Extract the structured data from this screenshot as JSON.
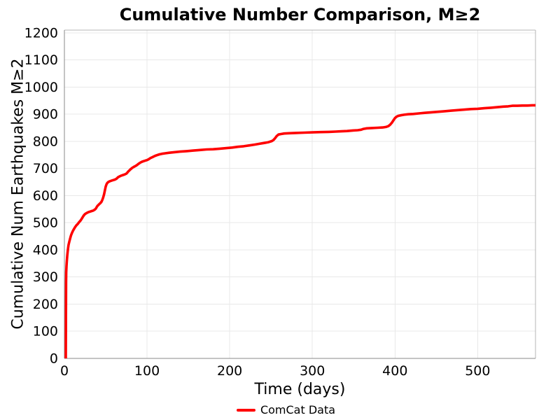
{
  "page": {
    "background": "#ffffff"
  },
  "header": {
    "title": "Cumulative Number Comparison, M≥2"
  },
  "axes": {
    "xlabel": "Time (days)",
    "ylabel": "Cumulative Num Earthquakes M≥2"
  },
  "legend": {
    "position": "bottom-center",
    "items": [
      {
        "label": "ComCat Data",
        "color": "#ff0000"
      }
    ]
  },
  "chart_data": {
    "type": "line",
    "title": "Cumulative Number Comparison, M≥2",
    "xlabel": "Time (days)",
    "ylabel": "Cumulative Num Earthquakes M≥2",
    "xlim": [
      0,
      570
    ],
    "ylim": [
      0,
      1210
    ],
    "x_ticks": [
      0,
      100,
      200,
      300,
      400,
      500
    ],
    "y_ticks": [
      0,
      100,
      200,
      300,
      400,
      500,
      600,
      700,
      800,
      900,
      1000,
      1100,
      1200
    ],
    "grid": true,
    "grid_color": "#e8e8e8",
    "spine_color_left_bottom": "#8a8a8a",
    "spine_color_top_right": "#b4b4b4",
    "tick_label_color": "#000000",
    "tick_font_px": 19,
    "legend_position": "bottom-center",
    "series": [
      {
        "name": "ComCat Data",
        "color": "#ff0000",
        "width": 3.6,
        "points": [
          [
            1.7,
            0
          ],
          [
            1.9,
            150
          ],
          [
            2,
            280
          ],
          [
            2.2,
            318
          ],
          [
            2.5,
            340
          ],
          [
            3,
            360
          ],
          [
            3.5,
            379
          ],
          [
            4,
            394
          ],
          [
            4.5,
            407
          ],
          [
            5,
            418
          ],
          [
            6,
            431
          ],
          [
            7,
            443
          ],
          [
            8,
            453
          ],
          [
            9,
            461
          ],
          [
            10,
            468
          ],
          [
            11,
            474
          ],
          [
            12,
            479
          ],
          [
            13,
            484
          ],
          [
            14,
            488
          ],
          [
            15,
            492
          ],
          [
            16,
            495
          ],
          [
            17,
            499
          ],
          [
            18,
            503
          ],
          [
            19,
            506
          ],
          [
            20,
            510
          ],
          [
            21,
            515
          ],
          [
            22,
            520
          ],
          [
            23,
            525
          ],
          [
            24,
            529
          ],
          [
            25,
            532
          ],
          [
            27,
            536
          ],
          [
            29,
            539
          ],
          [
            31,
            541
          ],
          [
            33,
            543
          ],
          [
            35,
            545
          ],
          [
            37,
            549
          ],
          [
            38,
            552
          ],
          [
            39,
            557
          ],
          [
            40,
            562
          ],
          [
            41,
            565
          ],
          [
            42,
            568
          ],
          [
            43,
            571
          ],
          [
            44,
            574
          ],
          [
            45,
            578
          ],
          [
            46,
            585
          ],
          [
            47,
            594
          ],
          [
            48,
            605
          ],
          [
            49,
            620
          ],
          [
            50,
            633
          ],
          [
            51,
            642
          ],
          [
            52,
            647
          ],
          [
            53,
            650
          ],
          [
            55,
            653
          ],
          [
            57,
            655
          ],
          [
            59,
            657
          ],
          [
            61,
            659
          ],
          [
            63,
            662
          ],
          [
            64,
            665
          ],
          [
            65,
            668
          ],
          [
            67,
            671
          ],
          [
            69,
            674
          ],
          [
            71,
            676
          ],
          [
            73,
            678
          ],
          [
            75,
            681
          ],
          [
            76,
            684
          ],
          [
            77,
            688
          ],
          [
            78,
            691
          ],
          [
            79,
            694
          ],
          [
            80,
            697
          ],
          [
            82,
            702
          ],
          [
            84,
            706
          ],
          [
            86,
            709
          ],
          [
            88,
            713
          ],
          [
            90,
            718
          ],
          [
            92,
            722
          ],
          [
            94,
            725
          ],
          [
            96,
            727
          ],
          [
            98,
            729
          ],
          [
            100,
            731
          ],
          [
            102,
            734
          ],
          [
            104,
            738
          ],
          [
            106,
            741
          ],
          [
            108,
            744
          ],
          [
            110,
            747
          ],
          [
            112,
            749
          ],
          [
            115,
            752
          ],
          [
            118,
            754
          ],
          [
            122,
            756
          ],
          [
            127,
            758
          ],
          [
            133,
            760
          ],
          [
            140,
            762
          ],
          [
            148,
            764
          ],
          [
            156,
            766
          ],
          [
            164,
            768
          ],
          [
            172,
            770
          ],
          [
            180,
            771
          ],
          [
            188,
            773
          ],
          [
            196,
            775
          ],
          [
            203,
            777
          ],
          [
            210,
            780
          ],
          [
            217,
            782
          ],
          [
            224,
            785
          ],
          [
            230,
            788
          ],
          [
            236,
            791
          ],
          [
            242,
            794
          ],
          [
            247,
            797
          ],
          [
            251,
            801
          ],
          [
            253,
            805
          ],
          [
            255,
            812
          ],
          [
            257,
            820
          ],
          [
            259,
            825
          ],
          [
            262,
            827
          ],
          [
            266,
            829
          ],
          [
            272,
            830
          ],
          [
            280,
            831
          ],
          [
            290,
            832
          ],
          [
            300,
            833
          ],
          [
            310,
            834
          ],
          [
            320,
            835
          ],
          [
            328,
            836
          ],
          [
            335,
            837
          ],
          [
            342,
            838
          ],
          [
            349,
            840
          ],
          [
            355,
            841
          ],
          [
            359,
            843
          ],
          [
            362,
            846
          ],
          [
            366,
            848
          ],
          [
            372,
            849
          ],
          [
            379,
            850
          ],
          [
            385,
            851
          ],
          [
            389,
            853
          ],
          [
            392,
            856
          ],
          [
            394,
            861
          ],
          [
            396,
            868
          ],
          [
            398,
            877
          ],
          [
            400,
            886
          ],
          [
            402,
            891
          ],
          [
            404,
            894
          ],
          [
            407,
            896
          ],
          [
            411,
            898
          ],
          [
            416,
            900
          ],
          [
            422,
            901
          ],
          [
            429,
            903
          ],
          [
            436,
            905
          ],
          [
            444,
            907
          ],
          [
            452,
            909
          ],
          [
            460,
            911
          ],
          [
            468,
            913
          ],
          [
            476,
            915
          ],
          [
            484,
            917
          ],
          [
            492,
            919
          ],
          [
            500,
            920
          ],
          [
            508,
            922
          ],
          [
            516,
            924
          ],
          [
            524,
            926
          ],
          [
            531,
            928
          ],
          [
            537,
            929
          ],
          [
            542,
            931
          ],
          [
            548,
            931
          ],
          [
            554,
            932
          ],
          [
            560,
            932
          ],
          [
            566,
            933
          ],
          [
            570,
            933
          ]
        ]
      }
    ]
  }
}
